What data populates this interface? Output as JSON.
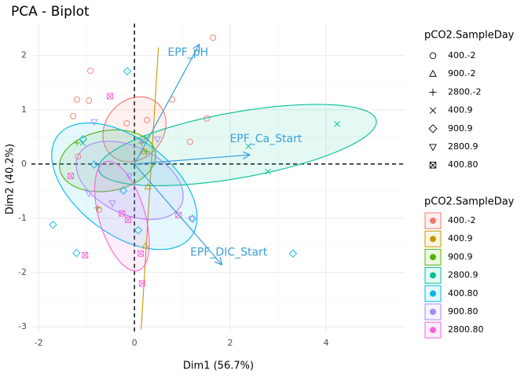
{
  "chart_data": {
    "type": "biplot",
    "title": "PCA - Biplot",
    "x_label": "Dim1 (56.7%)",
    "y_label": "Dim2 (40.2%)",
    "xlim": [
      -2.15,
      5.64
    ],
    "ylim": [
      -3.13,
      2.59
    ],
    "xticks": [
      -2,
      0,
      2,
      4
    ],
    "yticks": [
      -3,
      -2,
      -1,
      0,
      1,
      2
    ],
    "grid": true,
    "hline": 0,
    "vline": 0,
    "shapes": [
      "circle",
      "triangle",
      "plus",
      "x",
      "diamond",
      "down-triangle",
      "square-x"
    ],
    "shape_legend": {
      "title": "pCO2.SampleDay",
      "entries": [
        "400.-2",
        "900.-2",
        "2800.-2",
        "400.9",
        "900.9",
        "2800.9",
        "400.80"
      ]
    },
    "color_legend_title": "pCO2.SampleDay",
    "series": [
      {
        "name": "400.-2",
        "color": "#F8766D",
        "shape": "circle",
        "x": [
          -0.92,
          -1.2,
          -0.95,
          -1.28,
          -0.16,
          0.26,
          0.79,
          1.51,
          1.16,
          1.64,
          -1.18,
          -0.74
        ],
        "y": [
          1.72,
          1.19,
          1.17,
          0.88,
          0.75,
          0.81,
          1.19,
          0.84,
          0.41,
          2.33,
          0.14,
          -0.84
        ],
        "ellipse": {
          "center": [
            0.0,
            0.64
          ],
          "axis1": [
            0.62,
            0.3
          ],
          "axis2": [
            -0.22,
            0.52
          ]
        }
      },
      {
        "name": "400.9",
        "color": "#C49A00",
        "shape": "triangle",
        "x": [
          0.23,
          0.28,
          0.2
        ],
        "y": [
          -1.51,
          -0.42,
          0.23
        ],
        "ellipse": {
          "center": [
            0.32,
            -0.45
          ],
          "axis1": [
            0.18,
            2.6
          ],
          "axis2": [
            0,
            0
          ]
        }
      },
      {
        "name": "900.9",
        "color": "#53B400",
        "shape": "plus",
        "x": [
          -1.2,
          -0.77,
          0.25,
          0.15
        ],
        "y": [
          0.39,
          -0.81,
          0.23,
          0.39
        ],
        "ellipse": {
          "center": [
            -0.56,
            0.06
          ],
          "axis1": [
            1.0,
            0.15
          ],
          "axis2": [
            -0.1,
            0.55
          ]
        }
      },
      {
        "name": "2800.9",
        "color": "#00C094",
        "shape": "x",
        "x": [
          4.23,
          2.79,
          2.38,
          0.25,
          -1.08
        ],
        "y": [
          0.74,
          -0.14,
          0.33,
          0.48,
          0.39
        ],
        "ellipse": {
          "center": [
            2.15,
            0.35
          ],
          "axis1": [
            2.9,
            0.45
          ],
          "axis2": [
            -0.1,
            0.6
          ]
        }
      },
      {
        "name": "400.80",
        "color": "#00B6EB",
        "shape": "diamond",
        "x": [
          -0.15,
          -1.07,
          -1.7,
          -1.21,
          -0.23,
          0.08,
          1.21,
          3.31,
          -0.84
        ],
        "y": [
          1.71,
          0.46,
          -1.12,
          -1.64,
          -0.49,
          -1.22,
          -1.01,
          -1.65,
          -0.01
        ],
        "ellipse": {
          "center": [
            -0.21,
            -0.41
          ],
          "axis1": [
            1.45,
            -0.85
          ],
          "axis2": [
            0.45,
            0.8
          ]
        }
      },
      {
        "name": "900.80",
        "color": "#A58AFF",
        "shape": "down-triangle",
        "x": [
          -0.84,
          0.48,
          -0.11,
          -0.95,
          -0.46,
          1.2,
          0.15
        ],
        "y": [
          0.78,
          0.46,
          -0.22,
          -0.54,
          -0.72,
          -1.01,
          0.42
        ],
        "ellipse": {
          "center": [
            -0.1,
            -0.3
          ],
          "axis1": [
            1.1,
            -0.4
          ],
          "axis2": [
            0.2,
            0.6
          ]
        }
      },
      {
        "name": "2800.80",
        "color": "#FB61D7",
        "shape": "square-x",
        "x": [
          -0.51,
          -1.33,
          -0.26,
          -0.13,
          0.92,
          -1.03,
          0.13,
          0.16
        ],
        "y": [
          1.25,
          -0.22,
          -0.91,
          -1.03,
          -0.94,
          -1.68,
          -1.65,
          -2.2
        ],
        "ellipse": {
          "center": [
            -0.26,
            -0.96
          ],
          "axis1": [
            0.35,
            -1.0
          ],
          "axis2": [
            0.45,
            0.15
          ]
        }
      }
    ],
    "loadings_color": "#3B9FD9",
    "loadings": [
      {
        "name": "EPF_pH",
        "x": 1.35,
        "y": 2.2
      },
      {
        "name": "EPF_Ca_Start",
        "x": 2.4,
        "y": 0.17
      },
      {
        "name": "EPF_DIC_Start",
        "x": 1.82,
        "y": -1.85
      }
    ]
  }
}
